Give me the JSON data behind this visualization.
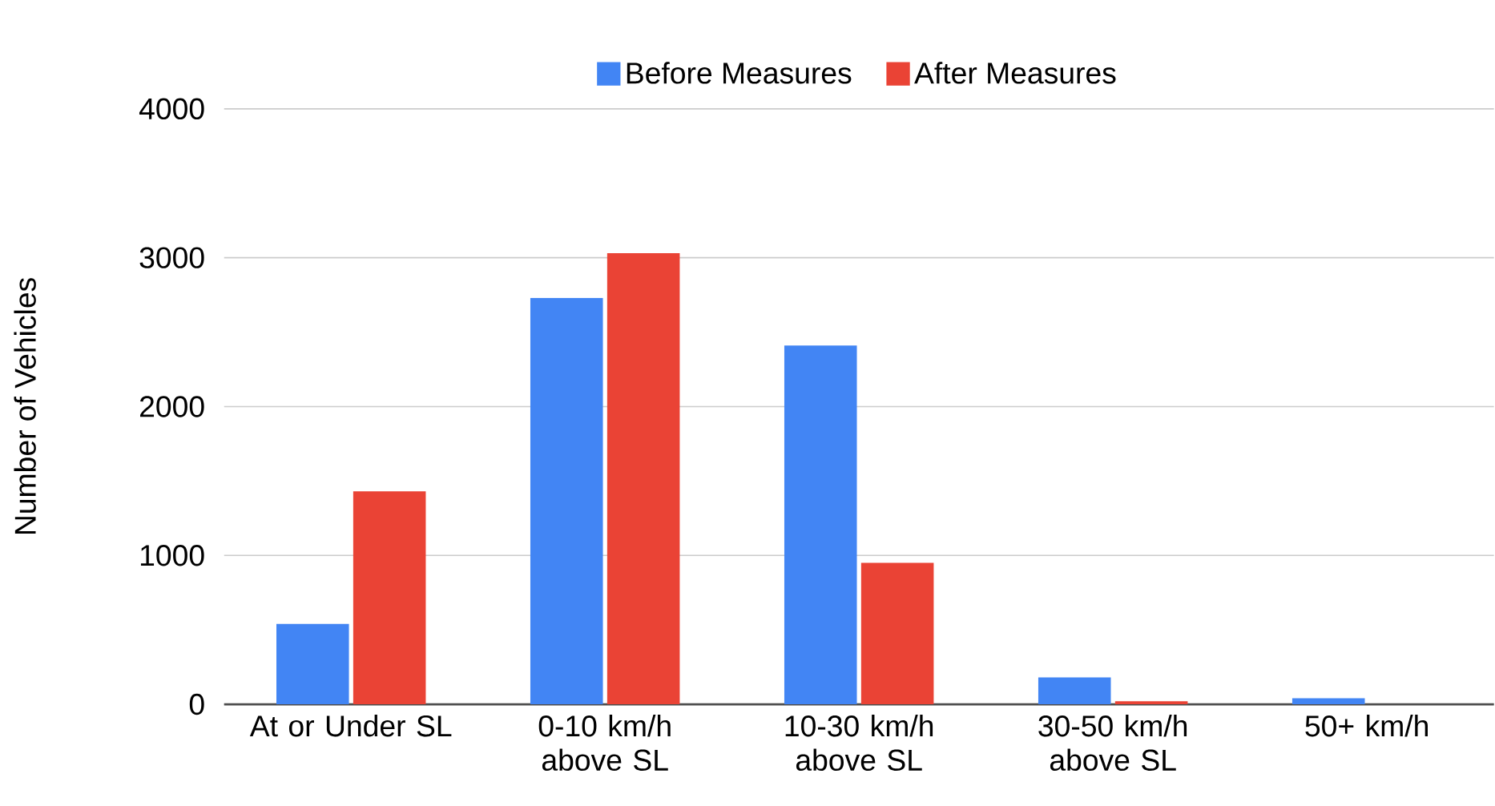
{
  "chart_data": {
    "type": "bar",
    "ylabel": "Number of Vehicles",
    "categories": [
      "At or Under SL",
      "0-10 km/h above SL",
      "10-30 km/h above SL",
      "30-50 km/h above SL",
      "50+ km/h"
    ],
    "series": [
      {
        "name": "Before Measures",
        "color": "#4285f4",
        "values": [
          540,
          2730,
          2410,
          180,
          40
        ]
      },
      {
        "name": "After Measures",
        "color": "#ea4335",
        "values": [
          1430,
          3030,
          950,
          20,
          0
        ]
      }
    ],
    "ylim": [
      0,
      4000
    ],
    "yticks": [
      0,
      1000,
      2000,
      3000,
      4000
    ],
    "grid": "y",
    "legend": "top"
  }
}
